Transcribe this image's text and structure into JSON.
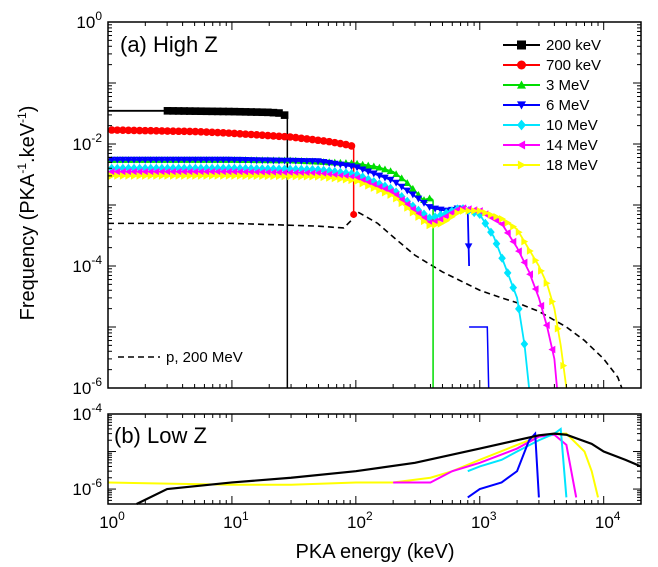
{
  "chart_data": [
    {
      "id": "panel_a",
      "type": "line",
      "panel_label": "(a) High Z",
      "xlabel": "PKA energy (keV)",
      "ylabel_parts": [
        "Frequency (PKA",
        "-1",
        ".keV",
        "-1",
        ")"
      ],
      "x_scale": "log",
      "y_scale": "log",
      "xlim": [
        1,
        20000
      ],
      "ylim": [
        1e-06,
        1
      ],
      "y_ticks": [
        {
          "value": 1,
          "base": "10",
          "exp": "0"
        },
        {
          "value": 0.01,
          "base": "10",
          "exp": "-2"
        },
        {
          "value": 0.0001,
          "base": "10",
          "exp": "-4"
        },
        {
          "value": 1e-06,
          "base": "10",
          "exp": "-6"
        }
      ],
      "legend_position": "top-right",
      "series": [
        {
          "name": "200 keV",
          "color": "#000000",
          "marker": "square",
          "x": [
            1,
            3,
            10,
            20,
            25,
            28
          ],
          "y": [
            0.035,
            0.035,
            0.034,
            0.033,
            0.032,
            0.028
          ],
          "drop_x": 28
        },
        {
          "name": "700 keV",
          "color": "#ff0000",
          "marker": "circle",
          "x": [
            1,
            5,
            10,
            30,
            60,
            90,
            96
          ],
          "y": [
            0.017,
            0.016,
            0.015,
            0.013,
            0.011,
            0.0095,
            0.009
          ],
          "drop_x": 96,
          "drop_y": 0.0007
        },
        {
          "name": "3 MeV",
          "color": "#00dd00",
          "marker": "triangle-up",
          "x": [
            1,
            10,
            30,
            100,
            150,
            200,
            250,
            300,
            350,
            400,
            420
          ],
          "y": [
            0.0055,
            0.0055,
            0.0054,
            0.0048,
            0.0042,
            0.0035,
            0.0025,
            0.0017,
            0.0012,
            0.0013,
            0.0012
          ],
          "drop_x": 420
        },
        {
          "name": "6 MeV",
          "color": "#0000ff",
          "marker": "triangle-down",
          "x": [
            1,
            10,
            50,
            100,
            200,
            300,
            400,
            550,
            700,
            800,
            820
          ],
          "y": [
            0.0055,
            0.0055,
            0.0052,
            0.0042,
            0.0025,
            0.0014,
            0.0009,
            0.0008,
            0.0009,
            0.0008,
            0.0001
          ],
          "tail_x": [
            820,
            1000,
            1150,
            1180
          ],
          "tail_y": [
            1e-05,
            1e-05,
            1e-05,
            1e-06
          ]
        },
        {
          "name": "10 MeV",
          "color": "#00e5ff",
          "marker": "diamond",
          "x": [
            1,
            10,
            50,
            100,
            200,
            300,
            400,
            500,
            700,
            1000,
            1300,
            1600,
            2000,
            2300,
            2500
          ],
          "y": [
            0.004,
            0.004,
            0.0038,
            0.0032,
            0.0018,
            0.0009,
            0.0006,
            0.0007,
            0.0009,
            0.0007,
            0.0003,
            0.0001,
            3e-05,
            5e-06,
            1e-06
          ]
        },
        {
          "name": "14 MeV",
          "color": "#ff00ff",
          "marker": "triangle-left",
          "x": [
            1,
            10,
            50,
            100,
            200,
            300,
            400,
            500,
            700,
            1000,
            1500,
            2000,
            2500,
            3000,
            3500,
            4000,
            4200
          ],
          "y": [
            0.0035,
            0.0035,
            0.0033,
            0.0028,
            0.0016,
            0.0008,
            0.0005,
            0.0006,
            0.0009,
            0.0008,
            0.0005,
            0.0002,
            8e-05,
            3e-05,
            1e-05,
            3e-06,
            1e-06
          ]
        },
        {
          "name": "18 MeV",
          "color": "#ffff00",
          "marker": "triangle-right",
          "x": [
            1,
            10,
            50,
            100,
            200,
            300,
            400,
            500,
            700,
            1000,
            1500,
            2000,
            3000,
            3500,
            4000,
            4500,
            5000
          ],
          "y": [
            0.003,
            0.003,
            0.0029,
            0.0025,
            0.0014,
            0.0007,
            0.00045,
            0.0005,
            0.0008,
            0.0008,
            0.0006,
            0.0004,
            0.0001,
            5e-05,
            2e-05,
            5e-06,
            1e-06
          ]
        },
        {
          "name": "p, 200 MeV",
          "color": "#000000",
          "marker": "none",
          "dashed": true,
          "x": [
            1,
            10,
            50,
            80,
            95,
            100,
            150,
            200,
            300,
            500,
            800,
            1000,
            1500,
            2000,
            3000,
            5000,
            7000,
            10000,
            13000,
            14000
          ],
          "y": [
            0.0005,
            0.0005,
            0.00045,
            0.00042,
            0.0006,
            0.0008,
            0.0005,
            0.0003,
            0.00015,
            8e-05,
            5e-05,
            4e-05,
            3e-05,
            2.5e-05,
            1.8e-05,
            1e-05,
            6e-06,
            3e-06,
            1.5e-06,
            1e-06
          ]
        }
      ]
    },
    {
      "id": "panel_b",
      "type": "line",
      "panel_label": "(b) Low Z",
      "xlabel": "PKA energy (keV)",
      "x_scale": "log",
      "y_scale": "log",
      "xlim": [
        1,
        20000
      ],
      "ylim": [
        4e-07,
        0.0001
      ],
      "x_ticks": [
        {
          "value": 1,
          "base": "10",
          "exp": "0"
        },
        {
          "value": 10,
          "base": "10",
          "exp": "1"
        },
        {
          "value": 100,
          "base": "10",
          "exp": "2"
        },
        {
          "value": 1000,
          "base": "10",
          "exp": "3"
        },
        {
          "value": 10000,
          "base": "10",
          "exp": "4"
        }
      ],
      "y_ticks": [
        {
          "value": 0.0001,
          "base": "10",
          "exp": "-4"
        },
        {
          "value": 1e-06,
          "base": "10",
          "exp": "-6"
        }
      ],
      "series": [
        {
          "name": "18 MeV",
          "color": "#ffff00",
          "x": [
            1,
            3,
            10,
            30,
            100,
            200,
            400,
            600,
            1000,
            2000,
            3000,
            4000,
            5000,
            7000,
            8000,
            9000
          ],
          "y": [
            1.5e-06,
            1.4e-06,
            1.3e-06,
            1.3e-06,
            1.5e-06,
            1.5e-06,
            2e-06,
            3e-06,
            6e-06,
            1.5e-05,
            2.5e-05,
            3e-05,
            3e-05,
            1e-05,
            3e-06,
            6e-07
          ]
        },
        {
          "name": "14 MeV",
          "color": "#ff00ff",
          "x": [
            200,
            400,
            600,
            1000,
            2000,
            3000,
            4000,
            5000,
            6000
          ],
          "y": [
            1.5e-06,
            1.5e-06,
            3e-06,
            5e-06,
            1.2e-05,
            2.5e-05,
            2.8e-05,
            1.5e-05,
            6e-07
          ]
        },
        {
          "name": "10 MeV",
          "color": "#00e5ff",
          "x": [
            800,
            1000,
            1500,
            2000,
            3000,
            4000,
            4500,
            5000
          ],
          "y": [
            3e-06,
            4e-06,
            6e-06,
            1e-05,
            2e-05,
            3e-05,
            4e-05,
            6e-07
          ]
        },
        {
          "name": "6 MeV",
          "color": "#0000ff",
          "x": [
            800,
            1000,
            1500,
            2000,
            2500,
            2800,
            3000
          ],
          "y": [
            6e-07,
            1e-06,
            1.5e-06,
            3e-06,
            2e-05,
            3e-05,
            6e-07
          ]
        },
        {
          "name": "p, 200 MeV",
          "color": "#000000",
          "x": [
            1.7,
            3,
            10,
            30,
            100,
            300,
            1000,
            2000,
            3000,
            4000,
            5000,
            8000,
            10000,
            15000,
            20000
          ],
          "y": [
            4e-07,
            1e-06,
            1.5e-06,
            2e-06,
            3e-06,
            5e-06,
            1.2e-05,
            2e-05,
            2.7e-05,
            3e-05,
            2.8e-05,
            1.6e-05,
            1e-05,
            6e-06,
            4e-06
          ]
        }
      ]
    }
  ]
}
